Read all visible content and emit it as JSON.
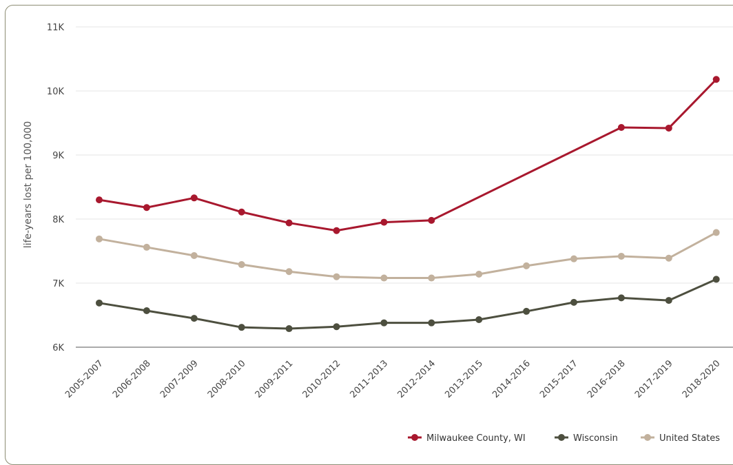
{
  "chart_data": {
    "type": "line",
    "ylabel": "life-years lost per 100,000",
    "ylim": [
      6000,
      11000
    ],
    "yticks": [
      6000,
      7000,
      8000,
      9000,
      10000,
      11000
    ],
    "ytick_labels": [
      "6K",
      "7K",
      "8K",
      "9K",
      "10K",
      "11K"
    ],
    "categories": [
      "2005-2007",
      "2006-2008",
      "2007-2009",
      "2008-2010",
      "2009-2011",
      "2010-2012",
      "2011-2013",
      "2012-2014",
      "2013-2015",
      "2014-2016",
      "2015-2017",
      "2016-2018",
      "2017-2019",
      "2018-2020"
    ],
    "series": [
      {
        "name": "Milwaukee County, WI",
        "color": "#a8182e",
        "values": [
          8300,
          8180,
          8330,
          8110,
          7940,
          7820,
          7950,
          7980,
          null,
          null,
          null,
          9430,
          9420,
          10180
        ]
      },
      {
        "name": "Wisconsin",
        "color": "#4d4f3f",
        "values": [
          6690,
          6570,
          6450,
          6310,
          6290,
          6320,
          6380,
          6380,
          6430,
          6560,
          6700,
          6770,
          6730,
          7060
        ]
      },
      {
        "name": "United States",
        "color": "#c2b19d",
        "values": [
          7690,
          7560,
          7430,
          7290,
          7180,
          7100,
          7080,
          7080,
          7140,
          7270,
          7380,
          7420,
          7390,
          7790
        ]
      }
    ],
    "grid": true,
    "legend": "bottom-right"
  }
}
